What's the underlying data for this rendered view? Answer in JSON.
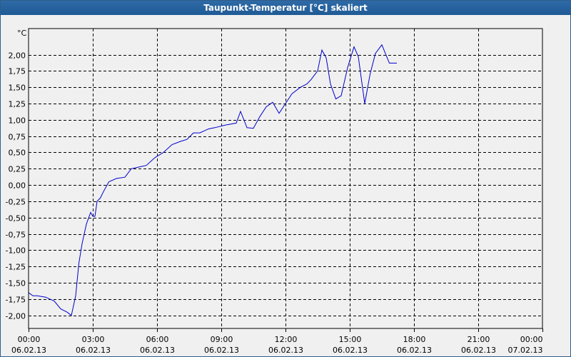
{
  "window": {
    "title": "Taupunkt-Temperatur [°C] skaliert"
  },
  "colors": {
    "line": "#0000cc",
    "grid": "#000000",
    "titlebar": "#1f5a95",
    "plot_bg": "#f0f0f0"
  },
  "chart_data": {
    "type": "line",
    "title": "Taupunkt-Temperatur [°C] skaliert",
    "ylabel": "°C",
    "xlabel": "",
    "ylim": [
      -2.2,
      2.4
    ],
    "xlim_hours": [
      0,
      24
    ],
    "grid": true,
    "y_ticks": [
      {
        "value": 2.0,
        "label": "2,00"
      },
      {
        "value": 1.75,
        "label": "1,75"
      },
      {
        "value": 1.5,
        "label": "1,50"
      },
      {
        "value": 1.25,
        "label": "1,25"
      },
      {
        "value": 1.0,
        "label": "1,00"
      },
      {
        "value": 0.75,
        "label": "0,75"
      },
      {
        "value": 0.5,
        "label": "0,50"
      },
      {
        "value": 0.25,
        "label": "0,25"
      },
      {
        "value": 0.0,
        "label": "0,00"
      },
      {
        "value": -0.25,
        "label": "-0,25"
      },
      {
        "value": -0.5,
        "label": "-0,50"
      },
      {
        "value": -0.75,
        "label": "-0,75"
      },
      {
        "value": -1.0,
        "label": "-1,00"
      },
      {
        "value": -1.25,
        "label": "-1,25"
      },
      {
        "value": -1.5,
        "label": "-1,50"
      },
      {
        "value": -1.75,
        "label": "-1,75"
      },
      {
        "value": -2.0,
        "label": "-2,00"
      }
    ],
    "x_ticks": [
      {
        "value": 0,
        "time": "00:00",
        "date": "06.02.13"
      },
      {
        "value": 3,
        "time": "03:00",
        "date": "06.02.13"
      },
      {
        "value": 6,
        "time": "06:00",
        "date": "06.02.13"
      },
      {
        "value": 9,
        "time": "09:00",
        "date": "06.02.13"
      },
      {
        "value": 12,
        "time": "12:00",
        "date": "06.02.13"
      },
      {
        "value": 15,
        "time": "15:00",
        "date": "06.02.13"
      },
      {
        "value": 18,
        "time": "18:00",
        "date": "06.02.13"
      },
      {
        "value": 21,
        "time": "21:00",
        "date": "06.02.13"
      },
      {
        "value": 24,
        "time": "00:00",
        "date": "07.02.13"
      }
    ],
    "series": [
      {
        "x": [
          0.0,
          0.2,
          0.4,
          0.8,
          1.2,
          1.5,
          1.8,
          2.0,
          2.2,
          2.35,
          2.5,
          2.7,
          2.9,
          3.0,
          3.1,
          3.2,
          3.35,
          3.5,
          3.75,
          4.1,
          4.5,
          4.8,
          5.2,
          5.5,
          5.9,
          6.3,
          6.7,
          7.1,
          7.4,
          7.7,
          8.0,
          8.4,
          8.7,
          9.2,
          9.7,
          9.9,
          10.2,
          10.5,
          10.8,
          11.1,
          11.4,
          11.7,
          12.0,
          12.3,
          12.7,
          13.0,
          13.2,
          13.5,
          13.7,
          13.9,
          14.1,
          14.35,
          14.6,
          14.9,
          15.2,
          15.4,
          15.7,
          15.95,
          16.2,
          16.5,
          16.85,
          17.2
        ],
        "values": [
          -1.65,
          -1.7,
          -1.7,
          -1.72,
          -1.78,
          -1.9,
          -1.95,
          -2.0,
          -1.7,
          -1.2,
          -0.9,
          -0.6,
          -0.42,
          -0.48,
          -0.48,
          -0.25,
          -0.2,
          -0.1,
          0.05,
          0.1,
          0.12,
          0.25,
          0.28,
          0.3,
          0.42,
          0.5,
          0.62,
          0.67,
          0.7,
          0.8,
          0.8,
          0.86,
          0.88,
          0.92,
          0.95,
          1.13,
          0.88,
          0.87,
          1.05,
          1.2,
          1.27,
          1.1,
          1.25,
          1.4,
          1.5,
          1.55,
          1.62,
          1.75,
          2.07,
          1.95,
          1.55,
          1.32,
          1.37,
          1.8,
          2.12,
          1.97,
          1.25,
          1.7,
          2.02,
          2.15,
          1.87,
          1.87
        ]
      }
    ]
  }
}
